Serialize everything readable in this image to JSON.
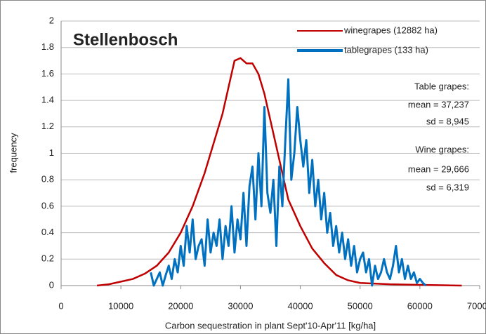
{
  "chart_data": {
    "type": "line",
    "title": "Stellenbosch",
    "x_label": "Carbon sequestration in plant Sept'10-Apr'11 [kg/ha]",
    "y_label": "frequency",
    "xlim": [
      0,
      70000
    ],
    "xticks": [
      0,
      10000,
      20000,
      30000,
      40000,
      50000,
      60000,
      70000
    ],
    "ylim": [
      0,
      2
    ],
    "yticks": [
      0,
      0.2,
      0.4,
      0.6,
      0.8,
      1,
      1.2,
      1.4,
      1.6,
      1.8,
      2
    ],
    "grid": true,
    "legend": "upper right",
    "annotations": [
      "Table grapes:",
      "mean = 37,237",
      "sd = 8,945",
      "Wine grapes:",
      "mean = 29,666",
      "sd = 6,319"
    ],
    "series": [
      {
        "name": "winegrapes (12882 ha)",
        "color": "#c00000",
        "x": [
          6000,
          8000,
          10000,
          12000,
          14000,
          16000,
          18000,
          20000,
          22000,
          24000,
          26000,
          27000,
          28000,
          29000,
          30000,
          31000,
          32000,
          33000,
          34000,
          35000,
          36000,
          37000,
          38000,
          39000,
          40000,
          42000,
          44000,
          46000,
          48000,
          50000,
          55000,
          60000,
          67000
        ],
        "values": [
          0,
          0.01,
          0.03,
          0.05,
          0.09,
          0.15,
          0.25,
          0.4,
          0.6,
          0.85,
          1.15,
          1.3,
          1.5,
          1.7,
          1.72,
          1.68,
          1.68,
          1.6,
          1.45,
          1.25,
          1.05,
          0.85,
          0.65,
          0.55,
          0.45,
          0.28,
          0.17,
          0.08,
          0.04,
          0.02,
          0.01,
          0.005,
          0
        ]
      },
      {
        "name": "tablegrapes (133 ha)",
        "color": "#0070c0",
        "x": [
          15000,
          15500,
          16000,
          16500,
          17000,
          17500,
          18000,
          18500,
          19000,
          19500,
          20000,
          20500,
          21000,
          21500,
          22000,
          22500,
          23000,
          23500,
          24000,
          24500,
          25000,
          25500,
          26000,
          26500,
          27000,
          27500,
          28000,
          28500,
          29000,
          29500,
          30000,
          30500,
          31000,
          31500,
          32000,
          32500,
          33000,
          33500,
          34000,
          34500,
          35000,
          35500,
          36000,
          36500,
          37000,
          37500,
          38000,
          38500,
          39000,
          39500,
          40000,
          40500,
          41000,
          41500,
          42000,
          42500,
          43000,
          43500,
          44000,
          44500,
          45000,
          45500,
          46000,
          46500,
          47000,
          47500,
          48000,
          48500,
          49000,
          49500,
          50000,
          50500,
          51000,
          51500,
          52000,
          52500,
          53000,
          53500,
          54000,
          54500,
          55000,
          55500,
          56000,
          56500,
          57000,
          57500,
          58000,
          58500,
          59000,
          59500,
          60000,
          60500,
          61000
        ],
        "values": [
          0.1,
          0,
          0.05,
          0.1,
          0,
          0.08,
          0.15,
          0.05,
          0.2,
          0.1,
          0.3,
          0.15,
          0.45,
          0.25,
          0.5,
          0.2,
          0.3,
          0.35,
          0.15,
          0.5,
          0.25,
          0.4,
          0.3,
          0.5,
          0.2,
          0.45,
          0.3,
          0.6,
          0.25,
          0.5,
          0.35,
          0.7,
          0.3,
          0.75,
          0.9,
          0.5,
          1.0,
          0.6,
          1.35,
          0.7,
          0.55,
          0.8,
          0.3,
          0.9,
          0.6,
          1.1,
          1.56,
          0.8,
          1.0,
          1.35,
          1.1,
          0.9,
          1.1,
          0.7,
          0.95,
          0.6,
          0.8,
          0.5,
          0.7,
          0.4,
          0.55,
          0.3,
          0.45,
          0.25,
          0.4,
          0.2,
          0.35,
          0.15,
          0.3,
          0.1,
          0.2,
          0.25,
          0.1,
          0.2,
          0,
          0.15,
          0.05,
          0.1,
          0.2,
          0.1,
          0.05,
          0.15,
          0.3,
          0.1,
          0.2,
          0.05,
          0.15,
          0.05,
          0.1,
          0.02,
          0.05,
          0.02,
          0
        ]
      }
    ]
  }
}
